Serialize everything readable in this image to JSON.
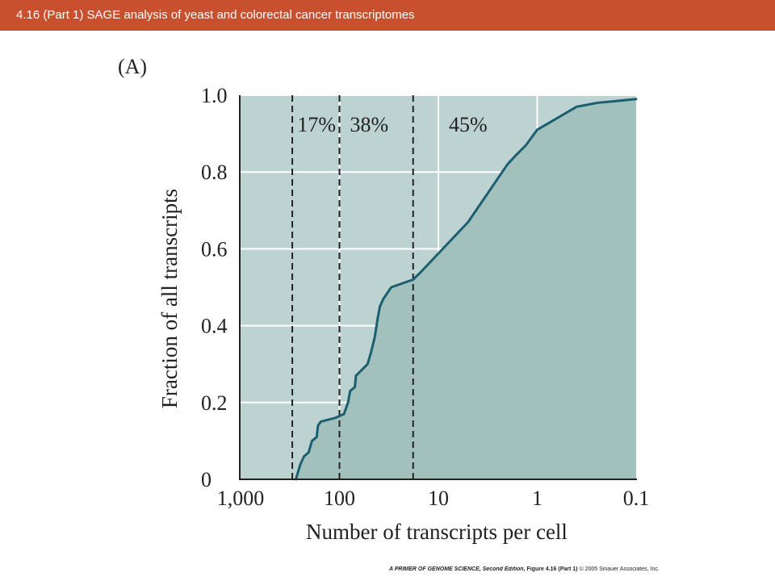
{
  "slide": {
    "title": "4.16 (Part 1)  SAGE analysis of yeast and colorectal cancer transcriptomes",
    "footer": {
      "book": "A PRIMER OF GENOME SCIENCE, Second Edition,",
      "figure": "Figure 4.16 (Part 1)",
      "copyright": "© 2005 Sinauer Associates, Inc."
    }
  },
  "chart_data": {
    "type": "line",
    "panel_label": "(A)",
    "xlabel": "Number of transcripts per cell",
    "ylabel": "Fraction of all transcripts",
    "x_scale": "log-reversed",
    "xlim": [
      1000,
      0.1
    ],
    "ylim": [
      0,
      1.0
    ],
    "x_ticks": [
      {
        "value": 1000,
        "label": "1,000"
      },
      {
        "value": 100,
        "label": "100"
      },
      {
        "value": 10,
        "label": "10"
      },
      {
        "value": 1,
        "label": "1"
      },
      {
        "value": 0.1,
        "label": "0.1"
      }
    ],
    "y_ticks": [
      {
        "value": 0,
        "label": "0"
      },
      {
        "value": 0.2,
        "label": "0.2"
      },
      {
        "value": 0.4,
        "label": "0.4"
      },
      {
        "value": 0.6,
        "label": "0.6"
      },
      {
        "value": 0.8,
        "label": "0.8"
      },
      {
        "value": 1.0,
        "label": "1.0"
      }
    ],
    "grid": true,
    "divisions": [
      {
        "x": 300,
        "style": "dashed"
      },
      {
        "x": 100,
        "style": "dashed"
      },
      {
        "x": 18,
        "style": "dashed"
      }
    ],
    "region_labels": [
      {
        "label": "17%",
        "x": 170
      },
      {
        "label": "38%",
        "x": 50
      },
      {
        "label": "45%",
        "x": 5
      }
    ],
    "colors": {
      "plot_bg": "#bdd3d1",
      "area_fill": "#a2c1bd",
      "line": "#1c5f70",
      "title_bar": "#c9502f"
    },
    "series": [
      {
        "values": [
          {
            "x": 276,
            "y": 0.0
          },
          {
            "x": 262,
            "y": 0.02
          },
          {
            "x": 248,
            "y": 0.04
          },
          {
            "x": 228,
            "y": 0.06
          },
          {
            "x": 205,
            "y": 0.07
          },
          {
            "x": 190,
            "y": 0.1
          },
          {
            "x": 170,
            "y": 0.11
          },
          {
            "x": 165,
            "y": 0.14
          },
          {
            "x": 155,
            "y": 0.15
          },
          {
            "x": 110,
            "y": 0.16
          },
          {
            "x": 90,
            "y": 0.17
          },
          {
            "x": 82,
            "y": 0.2
          },
          {
            "x": 78,
            "y": 0.23
          },
          {
            "x": 70,
            "y": 0.24
          },
          {
            "x": 68,
            "y": 0.27
          },
          {
            "x": 62,
            "y": 0.28
          },
          {
            "x": 52,
            "y": 0.3
          },
          {
            "x": 48,
            "y": 0.33
          },
          {
            "x": 44,
            "y": 0.37
          },
          {
            "x": 41,
            "y": 0.42
          },
          {
            "x": 39,
            "y": 0.45
          },
          {
            "x": 36,
            "y": 0.47
          },
          {
            "x": 30,
            "y": 0.5
          },
          {
            "x": 18,
            "y": 0.52
          },
          {
            "x": 15,
            "y": 0.54
          },
          {
            "x": 5,
            "y": 0.67
          },
          {
            "x": 2,
            "y": 0.82
          },
          {
            "x": 1.7,
            "y": 0.84
          },
          {
            "x": 1.3,
            "y": 0.87
          },
          {
            "x": 1.0,
            "y": 0.91
          },
          {
            "x": 0.4,
            "y": 0.97
          },
          {
            "x": 0.25,
            "y": 0.98
          },
          {
            "x": 0.1,
            "y": 0.99
          }
        ]
      }
    ]
  }
}
